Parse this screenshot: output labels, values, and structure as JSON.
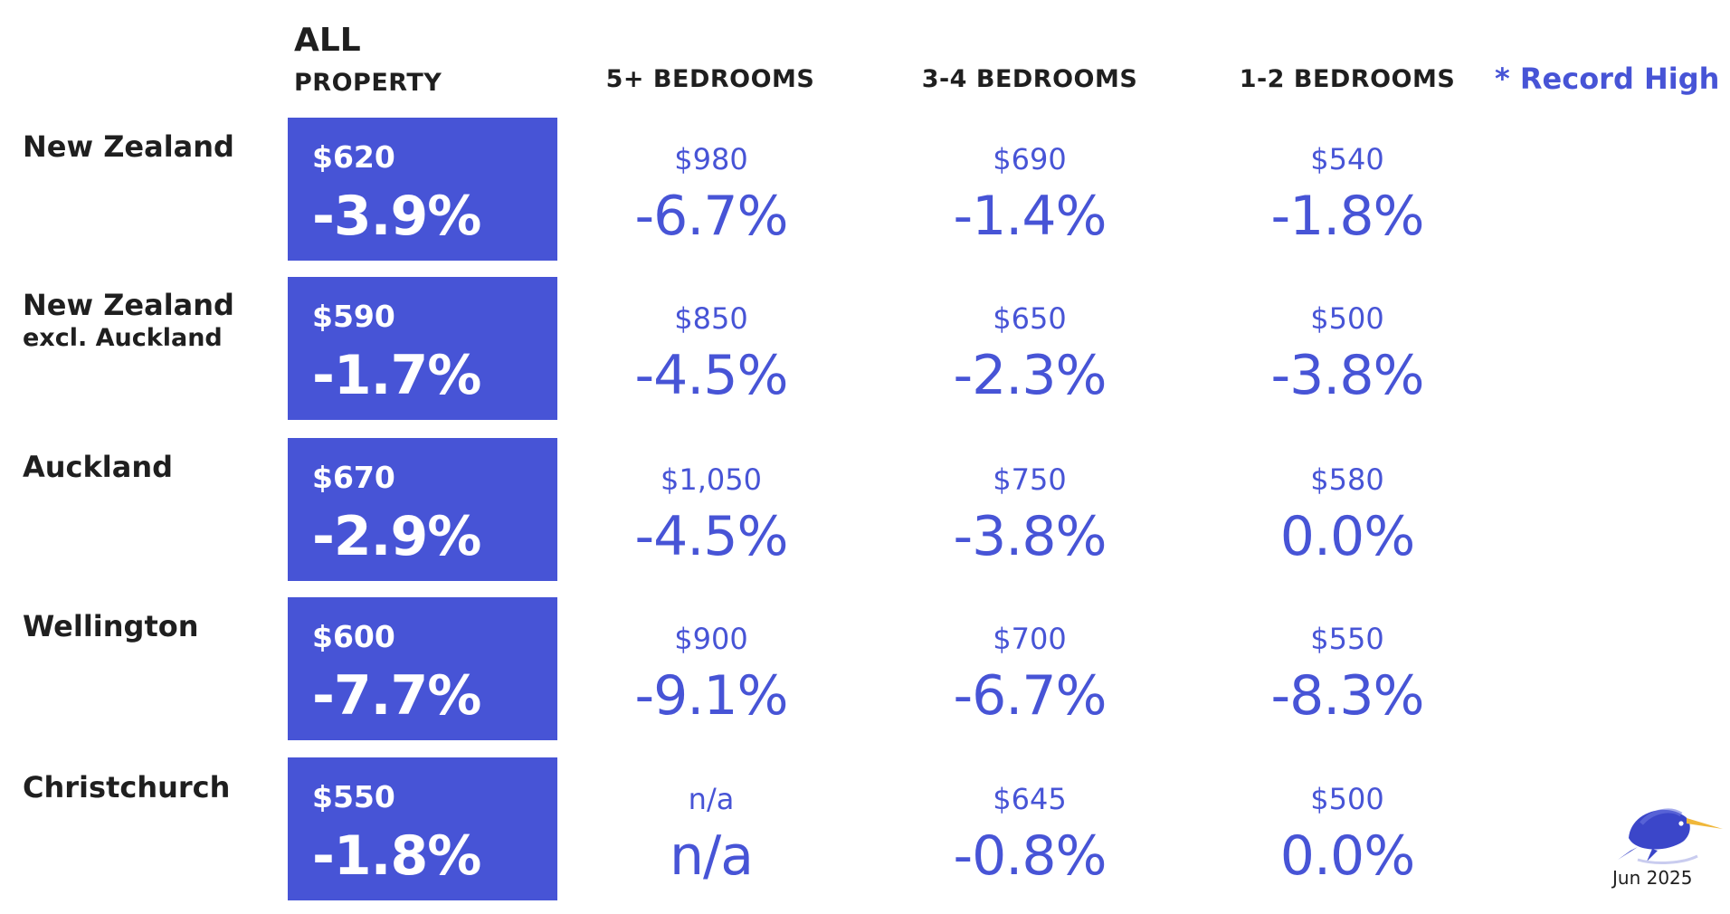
{
  "headers": {
    "all_line1": "ALL",
    "all_line2": "PROPERTY",
    "col_5plus": "5+ BEDROOMS",
    "col_3_4": "3-4 BEDROOMS",
    "col_1_2": "1-2 BEDROOMS",
    "legend": "* Record High"
  },
  "rows": [
    {
      "region": "New Zealand",
      "region_sub": "",
      "all": {
        "price": "$620",
        "change": "-3.9%"
      },
      "b5": {
        "price": "$980",
        "change": "-6.7%"
      },
      "b34": {
        "price": "$690",
        "change": "-1.4%"
      },
      "b12": {
        "price": "$540",
        "change": "-1.8%"
      }
    },
    {
      "region": "New Zealand",
      "region_sub": "excl. Auckland",
      "all": {
        "price": "$590",
        "change": "-1.7%"
      },
      "b5": {
        "price": "$850",
        "change": "-4.5%"
      },
      "b34": {
        "price": "$650",
        "change": "-2.3%"
      },
      "b12": {
        "price": "$500",
        "change": "-3.8%"
      }
    },
    {
      "region": "Auckland",
      "region_sub": "",
      "all": {
        "price": "$670",
        "change": "-2.9%"
      },
      "b5": {
        "price": "$1,050",
        "change": "-4.5%"
      },
      "b34": {
        "price": "$750",
        "change": "-3.8%"
      },
      "b12": {
        "price": "$580",
        "change": "0.0%"
      }
    },
    {
      "region": "Wellington",
      "region_sub": "",
      "all": {
        "price": "$600",
        "change": "-7.7%"
      },
      "b5": {
        "price": "$900",
        "change": "-9.1%"
      },
      "b34": {
        "price": "$700",
        "change": "-6.7%"
      },
      "b12": {
        "price": "$550",
        "change": "-8.3%"
      }
    },
    {
      "region": "Christchurch",
      "region_sub": "",
      "all": {
        "price": "$550",
        "change": "-1.8%"
      },
      "b5": {
        "price": "n/a",
        "change": "n/a"
      },
      "b34": {
        "price": "$645",
        "change": "-0.8%"
      },
      "b12": {
        "price": "$500",
        "change": "0.0%"
      }
    }
  ],
  "footer": {
    "date": "Jun 2025",
    "logo_icon": "kiwi-icon"
  },
  "colors": {
    "accent": "#4754d6",
    "text": "#1f1f1f",
    "kiwi_beak": "#f0b73a"
  }
}
